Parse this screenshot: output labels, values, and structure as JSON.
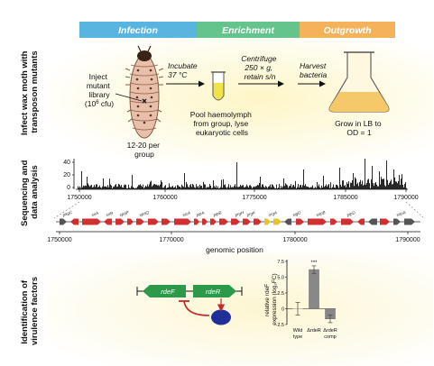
{
  "phases": [
    {
      "label": "Infection",
      "color": "#59b4e0"
    },
    {
      "label": "Enrichment",
      "color": "#64c48c"
    },
    {
      "label": "Outgrowth",
      "color": "#f4b35a"
    }
  ],
  "rows": {
    "row1": [
      "Infect wax moth with",
      "transposon mutants"
    ],
    "row2": [
      "Sequencing and",
      "data analysis"
    ],
    "row3": [
      "Identification of",
      "virulence factors"
    ]
  },
  "infection": {
    "inject": [
      "Inject",
      "mutant",
      "library"
    ],
    "cfu_pre": "(10",
    "cfu_exp": "6",
    "cfu_post": " cfu)",
    "group": [
      "12-20 per",
      "group"
    ],
    "incubate": [
      "Incubate",
      "37 °C"
    ],
    "pool": [
      "Pool haemolymph",
      "from group, lyse",
      "eukaryotic cells"
    ],
    "centrifuge": [
      "Centrifuge",
      "250 × g,",
      "retain s/n"
    ],
    "harvest": [
      "Harvest",
      "bacteria"
    ],
    "grow": [
      "Grow in LB to",
      "OD = 1"
    ]
  },
  "sequencing": {
    "yticks": [
      "40",
      "20",
      "0"
    ],
    "xticks": [
      "1750000",
      "1760000",
      "1775000",
      "1785000",
      "1790000"
    ],
    "gene_labels": [
      "pagC",
      "sirA",
      "sirB",
      "spaP",
      "spaQ",
      "sicA",
      "pipA",
      "pipB",
      "prgH",
      "prgK",
      "orgA",
      "sigD",
      "sopB",
      "pipD",
      "sopA"
    ],
    "xticks2": [
      "1750000",
      "1770000",
      "1780000",
      "1790000"
    ],
    "xlabel": "genomic position"
  },
  "virulence": {
    "gene1": "rdeF",
    "gene2": "rdeR",
    "chart": {
      "ylabel": [
        "relative rdeF",
        "expression (log₂FC)"
      ],
      "yticks": [
        "7.5",
        "5.0",
        "2.5",
        "0",
        "-2.5"
      ],
      "categories": [
        [
          "Wild",
          "type"
        ],
        [
          "ΔrdeR",
          ""
        ],
        [
          "ΔrdeR",
          "comp"
        ]
      ],
      "significance": "***"
    }
  },
  "chart_data": {
    "type": "bar",
    "categories": [
      "Wild type",
      "ΔrdeR",
      "ΔrdeR comp"
    ],
    "values": [
      0,
      6.2,
      -1.6
    ],
    "errors": [
      1.0,
      0.6,
      0.6
    ],
    "ylabel": "relative rdeF expression (log2FC)",
    "ylim": [
      -2.5,
      7.5
    ],
    "colors": [
      "#ffffff",
      "#888888",
      "#888888"
    ]
  },
  "colors": {
    "band1": "#fdf7d0",
    "band2": "#fdf9e4",
    "gene_red": "#d23030",
    "gene_grey": "#555555",
    "gene_yellow": "#e8c32a",
    "promoter_green": "#2c9a4a",
    "regulator_blue": "#1e2f9a",
    "arrow_red": "#c62828"
  }
}
